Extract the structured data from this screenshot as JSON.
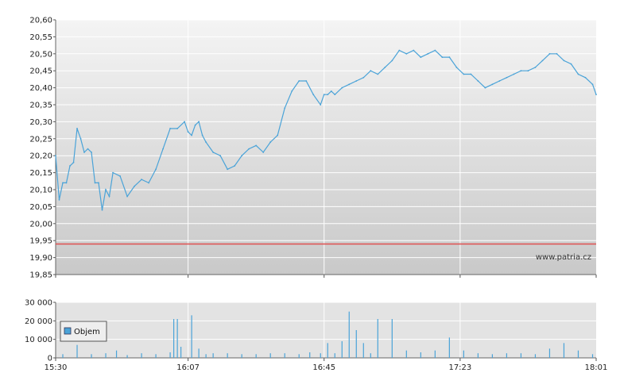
{
  "chart_data": [
    {
      "type": "line",
      "title": "",
      "xlabel": "",
      "ylabel": "",
      "ylim": [
        19.85,
        20.6
      ],
      "y_ticks": [
        "20,60",
        "20,55",
        "20,50",
        "20,45",
        "20,40",
        "20,35",
        "20,30",
        "20,25",
        "20,20",
        "20,15",
        "20,10",
        "20,05",
        "20,00",
        "19,95",
        "19,90",
        "19,85"
      ],
      "x_ticks": [
        "15:30",
        "16:07",
        "16:45",
        "17:23",
        "18:01"
      ],
      "reference_line": {
        "value": 19.94,
        "color": "#e05050"
      },
      "watermark": "www.patria.cz",
      "grid": true,
      "series": [
        {
          "color": "#4aa3d8",
          "x": [
            "15:30",
            "15:31",
            "15:32",
            "15:33",
            "15:34",
            "15:35",
            "15:36",
            "15:37",
            "15:38",
            "15:39",
            "15:40",
            "15:41",
            "15:42",
            "15:43",
            "15:44",
            "15:45",
            "15:46",
            "15:48",
            "15:50",
            "15:52",
            "15:54",
            "15:56",
            "15:58",
            "16:00",
            "16:02",
            "16:04",
            "16:06",
            "16:07",
            "16:08",
            "16:09",
            "16:10",
            "16:11",
            "16:12",
            "16:14",
            "16:16",
            "16:18",
            "16:20",
            "16:22",
            "16:24",
            "16:26",
            "16:28",
            "16:30",
            "16:32",
            "16:34",
            "16:36",
            "16:38",
            "16:40",
            "16:42",
            "16:44",
            "16:45",
            "16:46",
            "16:47",
            "16:48",
            "16:50",
            "16:52",
            "16:54",
            "16:56",
            "16:58",
            "17:00",
            "17:02",
            "17:04",
            "17:06",
            "17:08",
            "17:10",
            "17:12",
            "17:14",
            "17:16",
            "17:18",
            "17:20",
            "17:22",
            "17:24",
            "17:26",
            "17:28",
            "17:30",
            "17:32",
            "17:34",
            "17:36",
            "17:38",
            "17:40",
            "17:42",
            "17:44",
            "17:46",
            "17:48",
            "17:50",
            "17:52",
            "17:54",
            "17:56",
            "17:58",
            "18:00",
            "18:01"
          ],
          "values": [
            20.2,
            20.07,
            20.12,
            20.12,
            20.17,
            20.18,
            20.28,
            20.25,
            20.21,
            20.22,
            20.21,
            20.12,
            20.12,
            20.04,
            20.1,
            20.08,
            20.15,
            20.14,
            20.08,
            20.11,
            20.13,
            20.12,
            20.16,
            20.22,
            20.28,
            20.28,
            20.3,
            20.27,
            20.26,
            20.29,
            20.3,
            20.26,
            20.24,
            20.21,
            20.2,
            20.16,
            20.17,
            20.2,
            20.22,
            20.23,
            20.21,
            20.24,
            20.26,
            20.34,
            20.39,
            20.42,
            20.42,
            20.38,
            20.35,
            20.38,
            20.38,
            20.39,
            20.38,
            20.4,
            20.41,
            20.42,
            20.43,
            20.45,
            20.44,
            20.46,
            20.48,
            20.51,
            20.5,
            20.51,
            20.49,
            20.5,
            20.51,
            20.49,
            20.49,
            20.46,
            20.44,
            20.44,
            20.42,
            20.4,
            20.41,
            20.42,
            20.43,
            20.44,
            20.45,
            20.45,
            20.46,
            20.48,
            20.5,
            20.5,
            20.48,
            20.47,
            20.44,
            20.43,
            20.41,
            20.38
          ]
        }
      ]
    },
    {
      "type": "bar",
      "title": "",
      "xlabel": "",
      "ylabel": "",
      "ylim": [
        0,
        30000
      ],
      "y_ticks": [
        "30 000",
        "20 000",
        "10 000",
        "0"
      ],
      "x_ticks": [
        "15:30",
        "16:07",
        "16:45",
        "17:23",
        "18:01"
      ],
      "legend": {
        "label": "Objem",
        "position": "left"
      },
      "grid": true,
      "series": [
        {
          "name": "Objem",
          "color": "#4aa3d8",
          "x": [
            "15:32",
            "15:36",
            "15:40",
            "15:44",
            "15:47",
            "15:50",
            "15:54",
            "15:58",
            "16:02",
            "16:03",
            "16:04",
            "16:05",
            "16:08",
            "16:10",
            "16:12",
            "16:14",
            "16:18",
            "16:22",
            "16:26",
            "16:30",
            "16:34",
            "16:38",
            "16:41",
            "16:44",
            "16:46",
            "16:48",
            "16:50",
            "16:52",
            "16:54",
            "16:56",
            "16:58",
            "17:00",
            "17:04",
            "17:08",
            "17:12",
            "17:16",
            "17:20",
            "17:24",
            "17:28",
            "17:32",
            "17:36",
            "17:40",
            "17:44",
            "17:48",
            "17:52",
            "17:56",
            "18:00"
          ],
          "values": [
            2000,
            7000,
            2000,
            2500,
            4000,
            1500,
            2500,
            2000,
            3000,
            21000,
            21000,
            6000,
            23000,
            5000,
            2000,
            2500,
            2500,
            2000,
            2000,
            2500,
            2500,
            2000,
            3000,
            2500,
            8000,
            2500,
            9000,
            25000,
            15000,
            8000,
            2500,
            21000,
            21000,
            4000,
            3000,
            4000,
            11000,
            4000,
            2500,
            2000,
            2500,
            2500,
            2000,
            5000,
            8000,
            4000,
            2000
          ]
        }
      ]
    }
  ]
}
